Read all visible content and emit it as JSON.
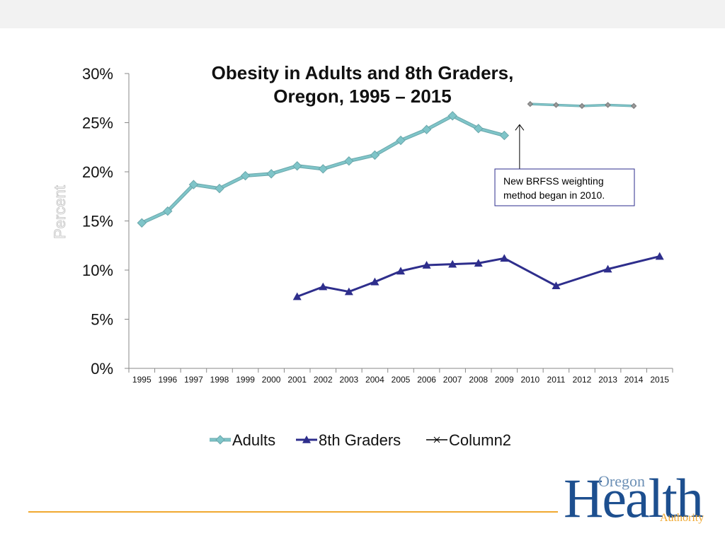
{
  "chart_data": {
    "type": "line",
    "title_line1": "Obesity in Adults and 8th Graders,",
    "title_line2": "Oregon, 1995 – 2015",
    "ylabel": "Percent",
    "ylim": [
      0,
      30
    ],
    "yticks": [
      "0%",
      "5%",
      "10%",
      "15%",
      "20%",
      "25%",
      "30%"
    ],
    "ytick_values": [
      0,
      5,
      10,
      15,
      20,
      25,
      30
    ],
    "categories": [
      "1995",
      "1996",
      "1997",
      "1998",
      "1999",
      "2000",
      "2001",
      "2002",
      "2003",
      "2004",
      "2005",
      "2006",
      "2007",
      "2008",
      "2009",
      "2010",
      "2011",
      "2012",
      "2013",
      "2014",
      "2015"
    ],
    "series": [
      {
        "name": "Adults",
        "segments": [
          [
            [
              0,
              14.8
            ],
            [
              1,
              16.0
            ],
            [
              2,
              18.7
            ],
            [
              3,
              18.3
            ],
            [
              4,
              19.6
            ],
            [
              5,
              19.8
            ],
            [
              6,
              20.6
            ],
            [
              7,
              20.3
            ],
            [
              8,
              21.1
            ],
            [
              9,
              21.7
            ],
            [
              10,
              23.2
            ],
            [
              11,
              24.3
            ],
            [
              12,
              25.7
            ],
            [
              13,
              24.4
            ],
            [
              14,
              23.7
            ]
          ],
          [
            [
              15,
              26.9
            ],
            [
              16,
              26.8
            ],
            [
              17,
              26.7
            ],
            [
              18,
              26.8
            ],
            [
              19,
              26.7
            ]
          ]
        ],
        "color": "#7fc5c9"
      },
      {
        "name": "8th Graders",
        "segments": [
          [
            [
              6,
              7.3
            ],
            [
              7,
              8.3
            ],
            [
              8,
              7.8
            ],
            [
              9,
              8.8
            ],
            [
              10,
              9.9
            ],
            [
              11,
              10.5
            ],
            [
              12,
              10.6
            ],
            [
              13,
              10.7
            ],
            [
              14,
              11.2
            ],
            [
              16,
              8.4
            ],
            [
              18,
              10.1
            ],
            [
              20,
              11.4
            ]
          ]
        ],
        "color": "#2e2e8c"
      },
      {
        "name": "Column2",
        "segments": [],
        "color": "#000000"
      }
    ],
    "annotation": {
      "text_line1": "New BRFSS weighting",
      "text_line2": "method began in 2010.",
      "arrow_category": 15,
      "arrow_value": 24.8
    },
    "legend_position": "bottom"
  },
  "logo": {
    "oregon": "Oregon",
    "health": "Health",
    "authority": "Authority"
  }
}
